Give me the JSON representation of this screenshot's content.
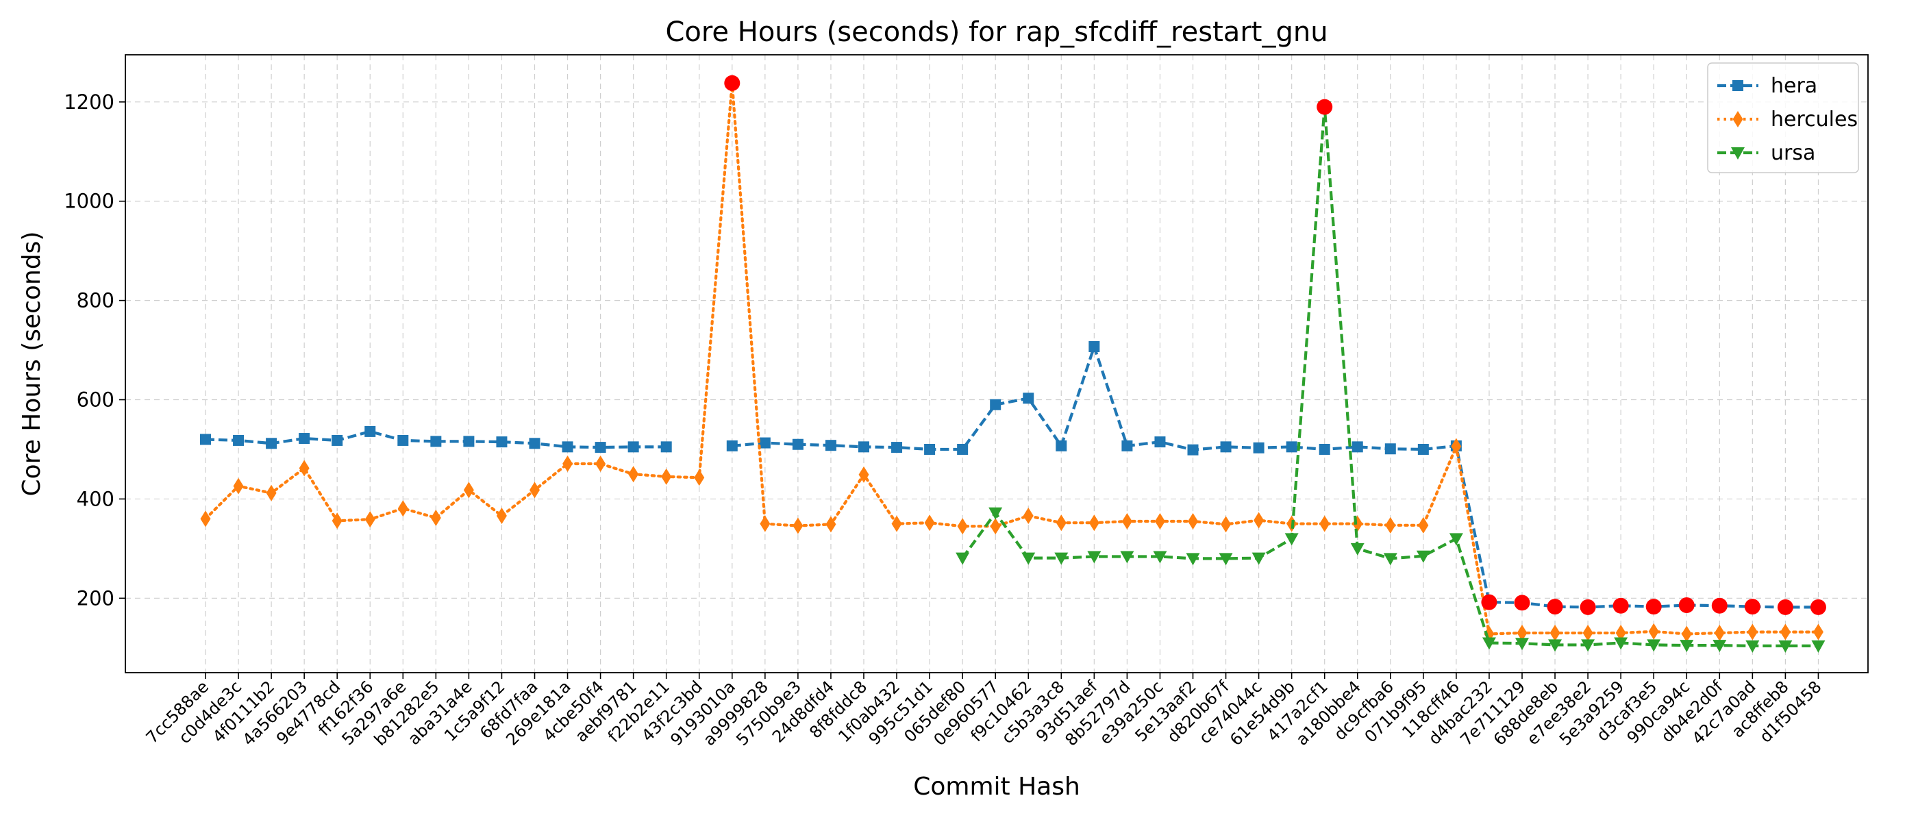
{
  "chart_data": {
    "type": "line",
    "title": "Core Hours (seconds) for rap_sfcdiff_restart_gnu",
    "xlabel": "Commit Hash",
    "ylabel": "Core Hours (seconds)",
    "ylim": [
      50,
      1295
    ],
    "yticks": [
      200,
      400,
      600,
      800,
      1000,
      1200
    ],
    "grid": true,
    "legend_position": "top-right",
    "categories": [
      "7cc588ae",
      "c0d4de3c",
      "4f0111b2",
      "4a566203",
      "9e4778cd",
      "ff162f36",
      "5a297a6e",
      "b81282e5",
      "aba31a4e",
      "1c5a9f12",
      "68fd7faa",
      "269e181a",
      "4cbe50f4",
      "aebf9781",
      "f22b2e11",
      "43f2c3bd",
      "9193010a",
      "a9999828",
      "5750b9e3",
      "24d8dfd4",
      "8f8fddc8",
      "1f0ab432",
      "995c51d1",
      "065def80",
      "0e960577",
      "f9c10462",
      "c5b3a3c8",
      "93d51aef",
      "8b52797d",
      "e39a250c",
      "5e13aaf2",
      "d820b67f",
      "ce74044c",
      "61e54d9b",
      "417a2cf1",
      "a180bbe4",
      "dc9cfba6",
      "071b9f95",
      "118cff46",
      "d4bac232",
      "7e711129",
      "688de8eb",
      "e7ee38e2",
      "5e3a9259",
      "d3caf3e5",
      "990ca94c",
      "db4e2d0f",
      "42c7a0ad",
      "ac8ffeb8",
      "d1f50458"
    ],
    "series": [
      {
        "name": "hera",
        "color": "#1f77b4",
        "marker": "square",
        "linestyle": "dashed",
        "values": [
          520,
          518,
          512,
          522,
          518,
          536,
          518,
          516,
          516,
          515,
          512,
          505,
          504,
          505,
          505,
          null,
          507,
          513,
          510,
          508,
          505,
          504,
          500,
          500,
          590,
          603,
          507,
          707,
          507,
          515,
          499,
          505,
          503,
          505,
          500,
          505,
          501,
          500,
          507,
          192,
          191,
          183,
          182,
          185,
          183,
          186,
          185,
          183,
          182,
          182
        ]
      },
      {
        "name": "hercules",
        "color": "#ff7f0e",
        "marker": "diamond",
        "linestyle": "dotted",
        "values": [
          360,
          426,
          412,
          462,
          356,
          359,
          381,
          362,
          418,
          366,
          418,
          471,
          471,
          450,
          445,
          443,
          1238,
          350,
          346,
          349,
          449,
          350,
          352,
          345,
          345,
          366,
          352,
          352,
          355,
          355,
          355,
          349,
          357,
          350,
          350,
          350,
          347,
          347,
          506,
          128,
          130,
          130,
          130,
          130,
          133,
          128,
          130,
          132,
          132,
          132
        ]
      },
      {
        "name": "ursa",
        "color": "#2ca02c",
        "marker": "triangle-down",
        "linestyle": "dashed",
        "values": [
          null,
          null,
          null,
          null,
          null,
          null,
          null,
          null,
          null,
          null,
          null,
          null,
          null,
          null,
          null,
          null,
          null,
          null,
          null,
          null,
          null,
          null,
          null,
          281,
          372,
          281,
          281,
          284,
          284,
          284,
          280,
          280,
          281,
          320,
          1190,
          300,
          280,
          285,
          320,
          110,
          109,
          106,
          106,
          110,
          106,
          105,
          105,
          104,
          104,
          104
        ]
      }
    ],
    "highlight_color": "#ff0000",
    "highlights": [
      {
        "category": "9193010a",
        "value": 1238
      },
      {
        "category": "417a2cf1",
        "value": 1190
      },
      {
        "category": "d4bac232",
        "value": 192
      },
      {
        "category": "7e711129",
        "value": 191
      },
      {
        "category": "688de8eb",
        "value": 183
      },
      {
        "category": "e7ee38e2",
        "value": 182
      },
      {
        "category": "5e3a9259",
        "value": 185
      },
      {
        "category": "d3caf3e5",
        "value": 183
      },
      {
        "category": "990ca94c",
        "value": 186
      },
      {
        "category": "db4e2d0f",
        "value": 185
      },
      {
        "category": "42c7a0ad",
        "value": 183
      },
      {
        "category": "ac8ffeb8",
        "value": 182
      },
      {
        "category": "d1f50458",
        "value": 182
      }
    ]
  }
}
